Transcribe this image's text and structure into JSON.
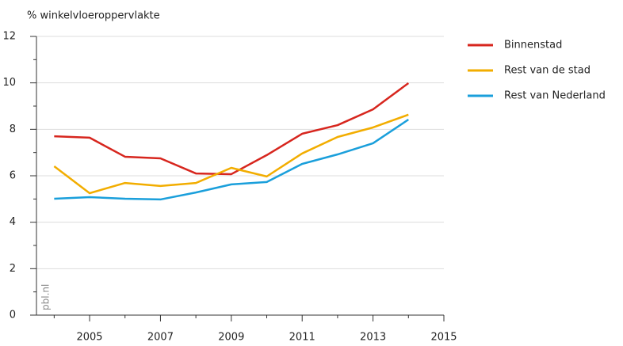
{
  "chart_data": {
    "type": "line",
    "y_label": "% winkelvloeroppervlakte",
    "source": "pbl.nl",
    "x": [
      2004,
      2005,
      2006,
      2007,
      2008,
      2009,
      2010,
      2011,
      2012,
      2013,
      2014
    ],
    "series": [
      {
        "name": "Binnenstad",
        "color": "#d7261e",
        "values": [
          7.7,
          7.64,
          6.82,
          6.75,
          6.1,
          6.07,
          6.89,
          7.81,
          8.18,
          8.86,
          9.99
        ]
      },
      {
        "name": "Rest van de stad",
        "color": "#f2ad00",
        "values": [
          6.41,
          5.25,
          5.69,
          5.56,
          5.69,
          6.34,
          5.97,
          6.96,
          7.67,
          8.08,
          8.63
        ]
      },
      {
        "name": "Rest van Nederland",
        "color": "#1a9fdb",
        "values": [
          5.01,
          5.08,
          5.01,
          4.98,
          5.28,
          5.63,
          5.73,
          6.51,
          6.92,
          7.4,
          8.42
        ]
      }
    ],
    "xlim": [
      2003.5,
      2015
    ],
    "xticks": [
      2005,
      2007,
      2009,
      2011,
      2013,
      2015
    ],
    "xminor_ticks": [
      2004,
      2006,
      2008,
      2010,
      2012,
      2014
    ],
    "ylim": [
      0,
      12
    ],
    "yticks": [
      0,
      2,
      4,
      6,
      8,
      10,
      12
    ],
    "yminor_ticks": [
      1,
      3,
      5,
      7,
      9,
      11
    ],
    "grid": true,
    "legend": "right"
  }
}
